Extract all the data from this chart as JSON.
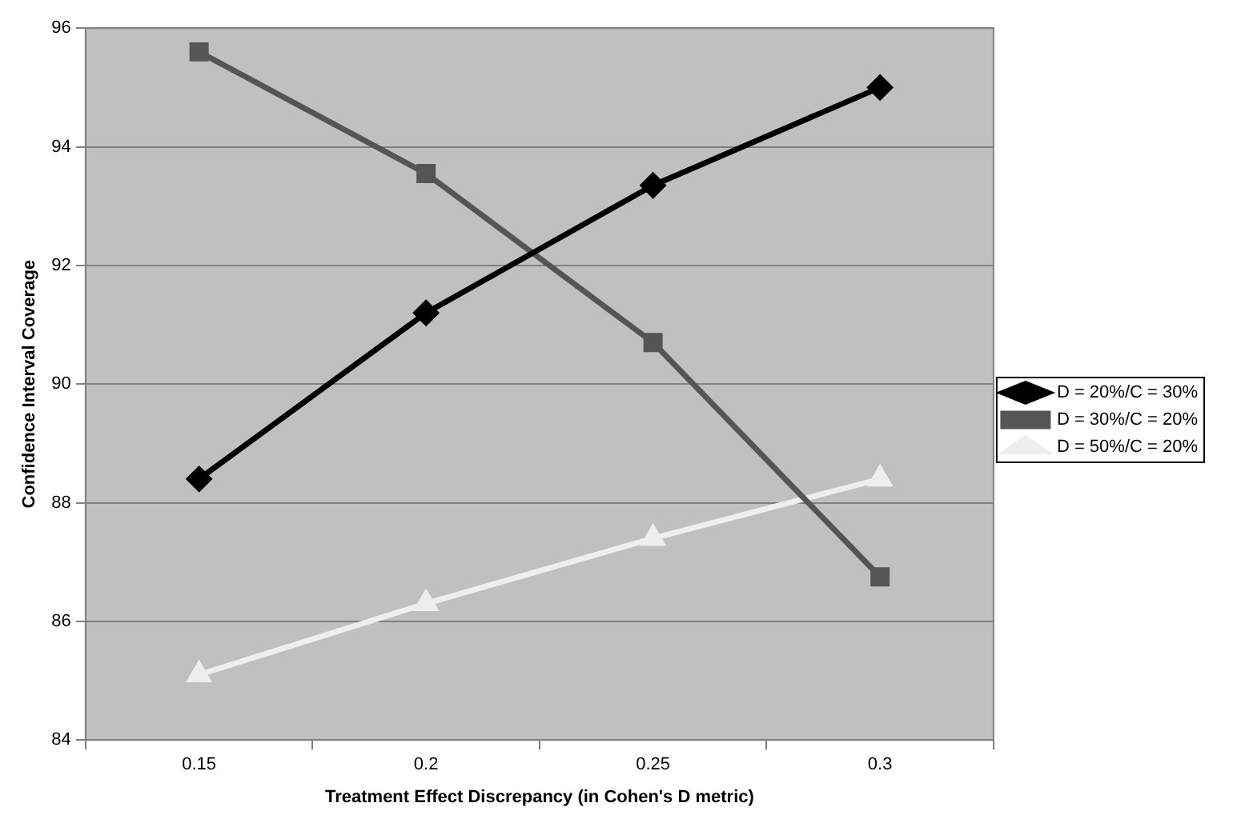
{
  "chart_data": {
    "type": "line",
    "xlabel": "Treatment Effect Discrepancy (in Cohen's D metric)",
    "ylabel": "Confidence Interval Coverage",
    "categories": [
      "0.15",
      "0.2",
      "0.25",
      "0.3"
    ],
    "series": [
      {
        "name": "D = 20%/C = 30%",
        "color": "#000000",
        "marker": "diamond",
        "values": [
          88.4,
          91.2,
          93.35,
          95.0
        ]
      },
      {
        "name": "D = 30%/C = 20%",
        "color": "#555555",
        "marker": "square",
        "values": [
          95.6,
          93.55,
          90.7,
          86.75
        ]
      },
      {
        "name": "D = 50%/C = 20%",
        "color": "#eeeeee",
        "marker": "triangle",
        "values": [
          85.1,
          86.3,
          87.4,
          88.4
        ]
      }
    ],
    "ylim": [
      84,
      96
    ],
    "yticks": [
      84,
      86,
      88,
      90,
      92,
      94,
      96
    ],
    "grid": "y",
    "legend": "right",
    "line_style": "solid"
  }
}
